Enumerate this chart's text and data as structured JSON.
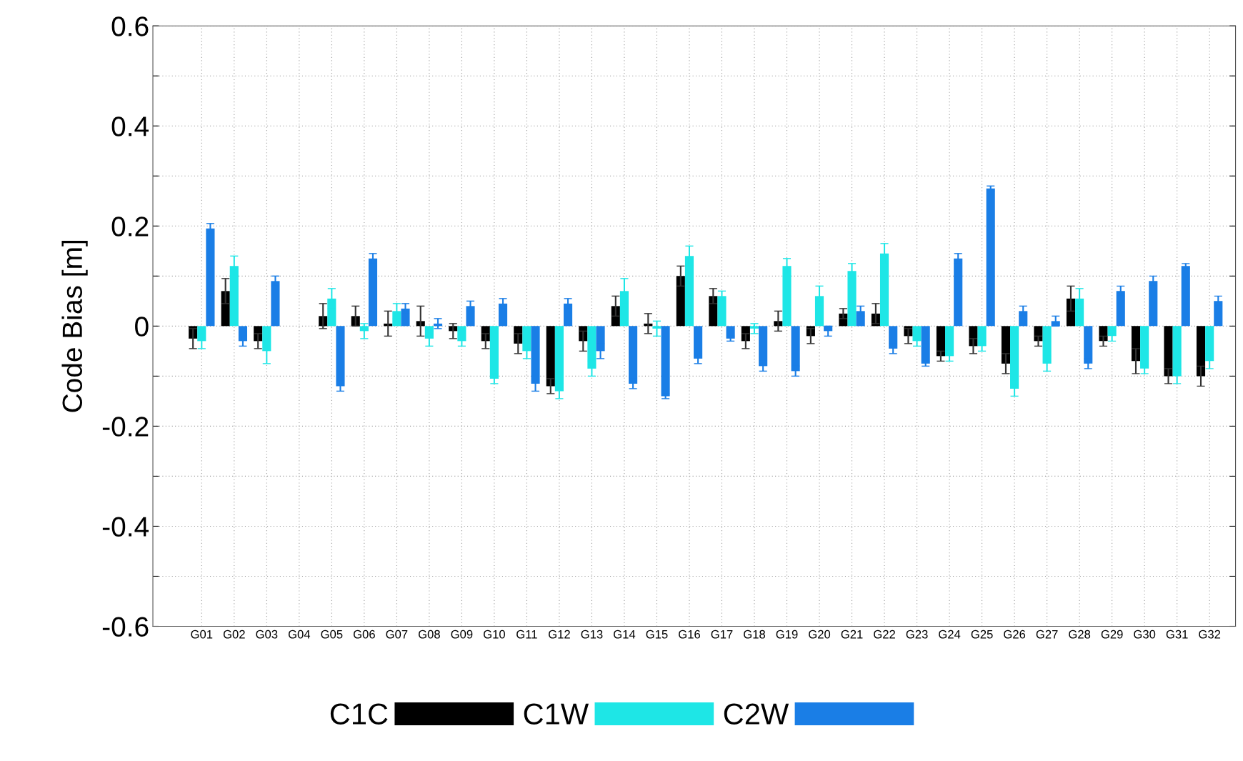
{
  "chart_data": {
    "type": "bar",
    "ylabel": "Code Bias [m]",
    "categories": [
      "G01",
      "G02",
      "G03",
      "G04",
      "G05",
      "G06",
      "G07",
      "G08",
      "G09",
      "G10",
      "G11",
      "G12",
      "G13",
      "G14",
      "G15",
      "G16",
      "G17",
      "G18",
      "G19",
      "G20",
      "G21",
      "G22",
      "G23",
      "G24",
      "G25",
      "G26",
      "G27",
      "G28",
      "G29",
      "G30",
      "G31",
      "G32"
    ],
    "series": [
      {
        "name": "C1C",
        "color": "#000000",
        "values": [
          -0.025,
          0.07,
          -0.03,
          null,
          0.02,
          0.02,
          0.005,
          0.01,
          -0.01,
          -0.03,
          -0.035,
          -0.12,
          -0.03,
          0.04,
          0.005,
          0.1,
          0.06,
          -0.03,
          0.01,
          -0.02,
          0.025,
          0.025,
          -0.02,
          -0.06,
          -0.04,
          -0.075,
          -0.03,
          0.055,
          -0.03,
          -0.07,
          -0.1,
          -0.1
        ],
        "errors": [
          0.02,
          0.025,
          0.015,
          null,
          0.025,
          0.02,
          0.025,
          0.03,
          0.015,
          0.015,
          0.02,
          0.015,
          0.02,
          0.02,
          0.02,
          0.02,
          0.015,
          0.015,
          0.02,
          0.015,
          0.01,
          0.02,
          0.015,
          0.01,
          0.015,
          0.02,
          0.01,
          0.025,
          0.01,
          0.025,
          0.015,
          0.02
        ]
      },
      {
        "name": "C1W",
        "color": "#1ee6e6",
        "values": [
          -0.03,
          0.12,
          -0.05,
          null,
          0.055,
          -0.01,
          0.03,
          -0.025,
          -0.03,
          -0.105,
          -0.05,
          -0.13,
          -0.085,
          0.07,
          -0.005,
          0.14,
          0.06,
          -0.005,
          0.12,
          0.06,
          0.11,
          0.145,
          -0.03,
          -0.06,
          -0.04,
          -0.125,
          -0.075,
          0.055,
          -0.02,
          -0.085,
          -0.1,
          -0.07
        ],
        "errors": [
          0.015,
          0.02,
          0.025,
          null,
          0.02,
          0.015,
          0.015,
          0.015,
          0.01,
          0.01,
          0.015,
          0.015,
          0.015,
          0.025,
          0.015,
          0.02,
          0.01,
          0.01,
          0.015,
          0.02,
          0.015,
          0.02,
          0.01,
          0.01,
          0.01,
          0.015,
          0.015,
          0.02,
          0.01,
          0.01,
          0.015,
          0.015
        ]
      },
      {
        "name": "C2W",
        "color": "#1a7ee6",
        "values": [
          0.195,
          -0.03,
          0.09,
          null,
          -0.12,
          0.135,
          0.035,
          0.005,
          0.04,
          0.045,
          -0.115,
          0.045,
          -0.05,
          -0.115,
          -0.14,
          -0.065,
          -0.025,
          -0.08,
          -0.09,
          -0.01,
          0.03,
          -0.045,
          -0.075,
          0.135,
          0.275,
          0.03,
          0.01,
          -0.075,
          0.07,
          0.09,
          0.12,
          0.05
        ],
        "errors": [
          0.01,
          0.01,
          0.01,
          null,
          0.01,
          0.01,
          0.01,
          0.01,
          0.01,
          0.01,
          0.015,
          0.01,
          0.015,
          0.01,
          0.005,
          0.01,
          0.005,
          0.01,
          0.01,
          0.01,
          0.01,
          0.01,
          0.005,
          0.01,
          0.005,
          0.01,
          0.01,
          0.01,
          0.01,
          0.01,
          0.005,
          0.01
        ]
      }
    ],
    "ylim": [
      -0.6,
      0.6
    ],
    "yticks": [
      -0.6,
      {
        "value": -0.5,
        "label": null
      },
      -0.4,
      {
        "value": -0.3,
        "label": null
      },
      -0.2,
      {
        "value": -0.1,
        "label": null
      },
      0,
      {
        "value": 0.1,
        "label": null
      },
      0.2,
      {
        "value": 0.3,
        "label": null
      },
      0.4,
      {
        "value": 0.5,
        "label": null
      },
      0.6
    ],
    "grid": true,
    "legend": "bottom"
  }
}
